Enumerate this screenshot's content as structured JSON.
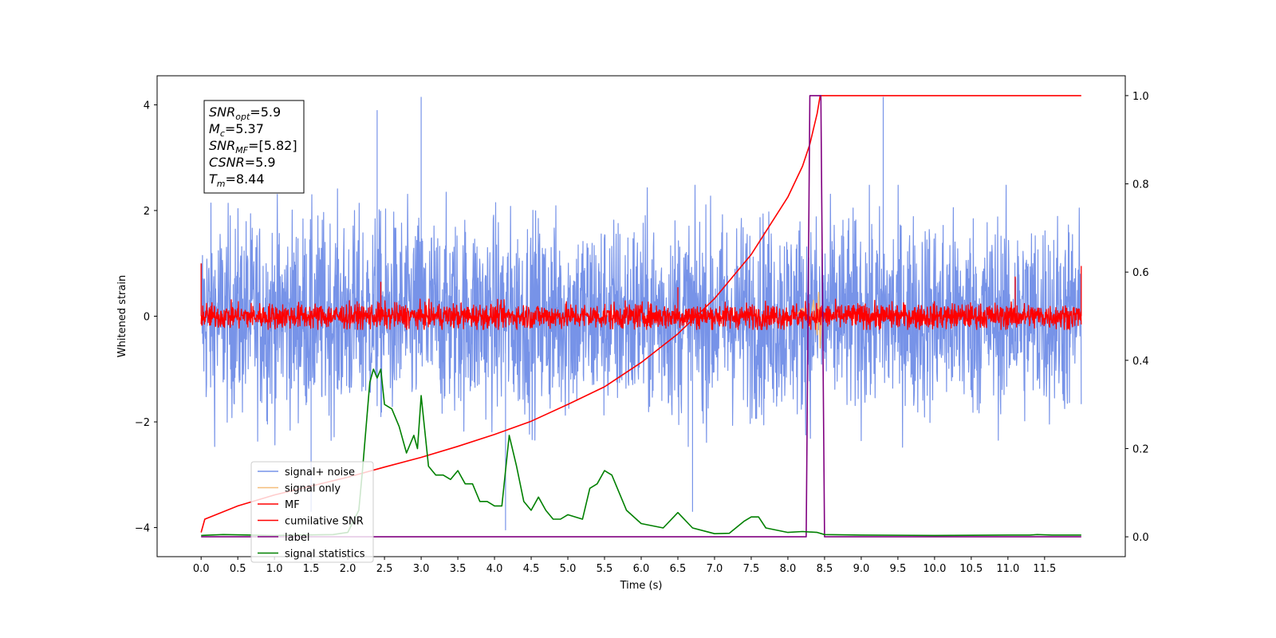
{
  "chart_data": {
    "type": "line",
    "xlabel": "Time (s)",
    "ylabel": "Whitened strain",
    "xlim": [
      -0.6,
      12.6
    ],
    "xticks": [
      "0.0",
      "0.5",
      "1.0",
      "1.5",
      "2.0",
      "2.5",
      "3.0",
      "3.5",
      "4.0",
      "4.5",
      "5.0",
      "5.5",
      "6.0",
      "6.5",
      "7.0",
      "7.5",
      "8.0",
      "8.5",
      "9.0",
      "9.5",
      "10.0",
      "10.5",
      "11.0",
      "11.5"
    ],
    "ylim_left": [
      -4.55,
      4.55
    ],
    "yticks_left": [
      "-4",
      "-2",
      "0",
      "2",
      "4"
    ],
    "ylim_right": [
      -0.045,
      1.045
    ],
    "yticks_right": [
      "0.0",
      "0.2",
      "0.4",
      "0.6",
      "0.8",
      "1.0"
    ],
    "grid": false,
    "legend_position": "lower-left",
    "info_box": {
      "lines": [
        {
          "main": "SNR",
          "sub": "opt",
          "value": "=5.9"
        },
        {
          "main": "M",
          "sub": "c",
          "value": "=5.37"
        },
        {
          "main": "SNR",
          "sub": "MF",
          "value": "=[5.82]"
        },
        {
          "main": "CSNR",
          "sub": "",
          "value": "=5.9"
        },
        {
          "main": "T",
          "sub": "m",
          "value": "=8.44"
        }
      ]
    },
    "series": [
      {
        "name": "signal+ noise",
        "color": "#7793e8",
        "axis": "left",
        "style": "noise",
        "x_range": [
          0.0,
          12.0
        ],
        "envelope": [
          [
            0.0,
            1.6
          ],
          [
            12.0,
            1.6
          ]
        ],
        "spikes": [
          [
            2.4,
            3.9
          ],
          [
            3.0,
            4.15
          ],
          [
            9.3,
            4.15
          ],
          [
            4.15,
            -4.05
          ],
          [
            6.7,
            -3.7
          ],
          [
            1.5,
            -3.7
          ]
        ]
      },
      {
        "name": "signal only",
        "color": "#f4be7a",
        "axis": "left",
        "style": "chirp",
        "points": [
          [
            8.1,
            0.0
          ],
          [
            8.2,
            0.15
          ],
          [
            8.3,
            -0.2
          ],
          [
            8.35,
            0.3
          ],
          [
            8.4,
            -0.35
          ],
          [
            8.42,
            0.45
          ],
          [
            8.44,
            -0.6
          ],
          [
            8.46,
            0.0
          ]
        ]
      },
      {
        "name": "MF",
        "color": "#ff0000",
        "axis": "left",
        "style": "mf",
        "x_range": [
          0.0,
          12.0
        ],
        "envelope": [
          [
            0.0,
            0.25
          ],
          [
            12.0,
            0.25
          ]
        ],
        "spikes": [
          [
            0.0,
            1.0
          ],
          [
            12.0,
            0.95
          ],
          [
            11.1,
            0.75
          ],
          [
            2.45,
            0.65
          ],
          [
            6.5,
            0.55
          ]
        ]
      },
      {
        "name": "cumilative SNR",
        "color": "#ff0000",
        "axis": "right",
        "points": [
          [
            0.0,
            0.01
          ],
          [
            0.05,
            0.04
          ],
          [
            0.5,
            0.07
          ],
          [
            1.0,
            0.095
          ],
          [
            1.5,
            0.115
          ],
          [
            2.0,
            0.135
          ],
          [
            2.5,
            0.158
          ],
          [
            3.0,
            0.18
          ],
          [
            3.5,
            0.205
          ],
          [
            4.0,
            0.232
          ],
          [
            4.5,
            0.262
          ],
          [
            5.0,
            0.3
          ],
          [
            5.5,
            0.34
          ],
          [
            6.0,
            0.395
          ],
          [
            6.5,
            0.46
          ],
          [
            7.0,
            0.54
          ],
          [
            7.5,
            0.64
          ],
          [
            8.0,
            0.77
          ],
          [
            8.2,
            0.84
          ],
          [
            8.3,
            0.89
          ],
          [
            8.4,
            0.96
          ],
          [
            8.44,
            1.0
          ],
          [
            12.0,
            1.0
          ]
        ]
      },
      {
        "name": "label",
        "color": "#800080",
        "axis": "right",
        "points": [
          [
            0.0,
            0.0
          ],
          [
            8.25,
            0.0
          ],
          [
            8.3,
            1.0
          ],
          [
            8.45,
            1.0
          ],
          [
            8.5,
            0.0
          ],
          [
            12.0,
            0.0
          ]
        ]
      },
      {
        "name": "signal statistics",
        "color": "#008000",
        "axis": "right",
        "points": [
          [
            0.0,
            0.003
          ],
          [
            0.3,
            0.005
          ],
          [
            1.0,
            0.003
          ],
          [
            1.8,
            0.005
          ],
          [
            2.0,
            0.01
          ],
          [
            2.15,
            0.06
          ],
          [
            2.2,
            0.15
          ],
          [
            2.3,
            0.35
          ],
          [
            2.35,
            0.38
          ],
          [
            2.4,
            0.36
          ],
          [
            2.45,
            0.38
          ],
          [
            2.5,
            0.3
          ],
          [
            2.6,
            0.29
          ],
          [
            2.7,
            0.25
          ],
          [
            2.8,
            0.19
          ],
          [
            2.9,
            0.23
          ],
          [
            2.95,
            0.2
          ],
          [
            3.0,
            0.32
          ],
          [
            3.05,
            0.24
          ],
          [
            3.1,
            0.16
          ],
          [
            3.2,
            0.14
          ],
          [
            3.3,
            0.14
          ],
          [
            3.4,
            0.13
          ],
          [
            3.5,
            0.15
          ],
          [
            3.6,
            0.12
          ],
          [
            3.7,
            0.12
          ],
          [
            3.8,
            0.08
          ],
          [
            3.9,
            0.08
          ],
          [
            4.0,
            0.07
          ],
          [
            4.1,
            0.07
          ],
          [
            4.2,
            0.23
          ],
          [
            4.3,
            0.16
          ],
          [
            4.4,
            0.08
          ],
          [
            4.5,
            0.06
          ],
          [
            4.6,
            0.09
          ],
          [
            4.7,
            0.06
          ],
          [
            4.8,
            0.04
          ],
          [
            4.9,
            0.04
          ],
          [
            5.0,
            0.05
          ],
          [
            5.2,
            0.04
          ],
          [
            5.3,
            0.11
          ],
          [
            5.4,
            0.12
          ],
          [
            5.5,
            0.15
          ],
          [
            5.6,
            0.14
          ],
          [
            5.7,
            0.1
          ],
          [
            5.8,
            0.06
          ],
          [
            6.0,
            0.03
          ],
          [
            6.3,
            0.02
          ],
          [
            6.5,
            0.055
          ],
          [
            6.7,
            0.02
          ],
          [
            7.0,
            0.007
          ],
          [
            7.2,
            0.008
          ],
          [
            7.4,
            0.035
          ],
          [
            7.5,
            0.045
          ],
          [
            7.6,
            0.045
          ],
          [
            7.7,
            0.02
          ],
          [
            8.0,
            0.01
          ],
          [
            8.2,
            0.012
          ],
          [
            8.4,
            0.01
          ],
          [
            8.5,
            0.005
          ],
          [
            9.0,
            0.004
          ],
          [
            10.0,
            0.003
          ],
          [
            11.0,
            0.004
          ],
          [
            11.3,
            0.004
          ],
          [
            11.4,
            0.005
          ],
          [
            11.6,
            0.004
          ],
          [
            12.0,
            0.004
          ]
        ]
      }
    ]
  }
}
